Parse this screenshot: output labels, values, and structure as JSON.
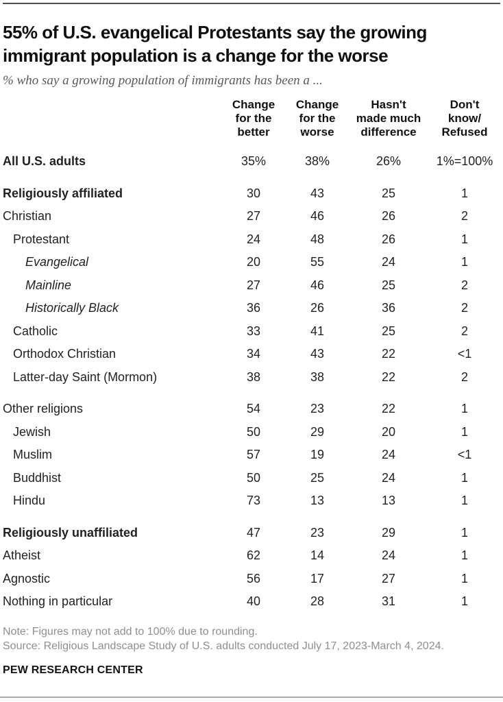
{
  "colors": {
    "text": "#222222",
    "muted_gray": "#8f8f8f",
    "rule_top": "#4f4f4f",
    "rule_bottom": "#a9a9a9"
  },
  "header": {
    "title": "55% of U.S. evangelical Protestants say the growing immigrant population is a change for the worse",
    "title_lines": [
      "55% of U.S. evangelical Protestants say the growing",
      "immigrant population is a change for the worse"
    ],
    "subtitle": "% who say a growing population of immigrants has been a ..."
  },
  "chart_data": {
    "type": "table",
    "title": "55% of U.S. evangelical Protestants say the growing immigrant population is a change for the worse",
    "subtitle": "% who say a growing population of immigrants has been a ...",
    "columns": [
      "Change for the better",
      "Change for the worse",
      "Hasn't made much difference",
      "Don't know/Refused"
    ],
    "col_headers": [
      "Change\nfor the\nbetter",
      "Change\nfor the\nworse",
      "Hasn't\nmade much\ndifference",
      "Don't\nknow/\nRefused"
    ],
    "rows": [
      {
        "label": "All U.S. adults",
        "values": [
          "35%",
          "38%",
          "26%",
          "1%=100%"
        ],
        "bold": true,
        "italic": false,
        "indent": 0,
        "gap": false
      },
      {
        "label": "Religiously affiliated",
        "values": [
          "30",
          "43",
          "25",
          "1"
        ],
        "bold": true,
        "italic": false,
        "indent": 0,
        "gap": true
      },
      {
        "label": "Christian",
        "values": [
          "27",
          "46",
          "26",
          "2"
        ],
        "bold": false,
        "italic": false,
        "indent": 0,
        "gap": false
      },
      {
        "label": "Protestant",
        "values": [
          "24",
          "48",
          "26",
          "1"
        ],
        "bold": false,
        "italic": false,
        "indent": 1,
        "gap": false
      },
      {
        "label": "Evangelical",
        "values": [
          "20",
          "55",
          "24",
          "1"
        ],
        "bold": false,
        "italic": true,
        "indent": 2,
        "gap": false
      },
      {
        "label": "Mainline",
        "values": [
          "27",
          "46",
          "25",
          "2"
        ],
        "bold": false,
        "italic": true,
        "indent": 2,
        "gap": false
      },
      {
        "label": "Historically Black",
        "values": [
          "36",
          "26",
          "36",
          "2"
        ],
        "bold": false,
        "italic": true,
        "indent": 2,
        "gap": false
      },
      {
        "label": "Catholic",
        "values": [
          "33",
          "41",
          "25",
          "2"
        ],
        "bold": false,
        "italic": false,
        "indent": 1,
        "gap": false
      },
      {
        "label": "Orthodox Christian",
        "values": [
          "34",
          "43",
          "22",
          "<1"
        ],
        "bold": false,
        "italic": false,
        "indent": 1,
        "gap": false
      },
      {
        "label": "Latter-day Saint (Mormon)",
        "values": [
          "38",
          "38",
          "22",
          "2"
        ],
        "bold": false,
        "italic": false,
        "indent": 1,
        "gap": false
      },
      {
        "label": "Other religions",
        "values": [
          "54",
          "23",
          "22",
          "1"
        ],
        "bold": false,
        "italic": false,
        "indent": 0,
        "gap": true
      },
      {
        "label": "Jewish",
        "values": [
          "50",
          "29",
          "20",
          "1"
        ],
        "bold": false,
        "italic": false,
        "indent": 1,
        "gap": false
      },
      {
        "label": "Muslim",
        "values": [
          "57",
          "19",
          "24",
          "<1"
        ],
        "bold": false,
        "italic": false,
        "indent": 1,
        "gap": false
      },
      {
        "label": "Buddhist",
        "values": [
          "50",
          "25",
          "24",
          "1"
        ],
        "bold": false,
        "italic": false,
        "indent": 1,
        "gap": false
      },
      {
        "label": "Hindu",
        "values": [
          "73",
          "13",
          "13",
          "1"
        ],
        "bold": false,
        "italic": false,
        "indent": 1,
        "gap": false
      },
      {
        "label": "Religiously unaffiliated",
        "values": [
          "47",
          "23",
          "29",
          "1"
        ],
        "bold": true,
        "italic": false,
        "indent": 0,
        "gap": true
      },
      {
        "label": "Atheist",
        "values": [
          "62",
          "14",
          "24",
          "1"
        ],
        "bold": false,
        "italic": false,
        "indent": 0,
        "gap": false
      },
      {
        "label": "Agnostic",
        "values": [
          "56",
          "17",
          "27",
          "1"
        ],
        "bold": false,
        "italic": false,
        "indent": 0,
        "gap": false
      },
      {
        "label": "Nothing in particular",
        "values": [
          "40",
          "28",
          "31",
          "1"
        ],
        "bold": false,
        "italic": false,
        "indent": 0,
        "gap": false
      }
    ]
  },
  "footer": {
    "note": "Note: Figures may not add to 100% due to rounding.",
    "source": "Source: Religious Landscape Study of U.S. adults conducted July 17, 2023-March 4, 2024.",
    "brand": "PEW RESEARCH CENTER"
  }
}
